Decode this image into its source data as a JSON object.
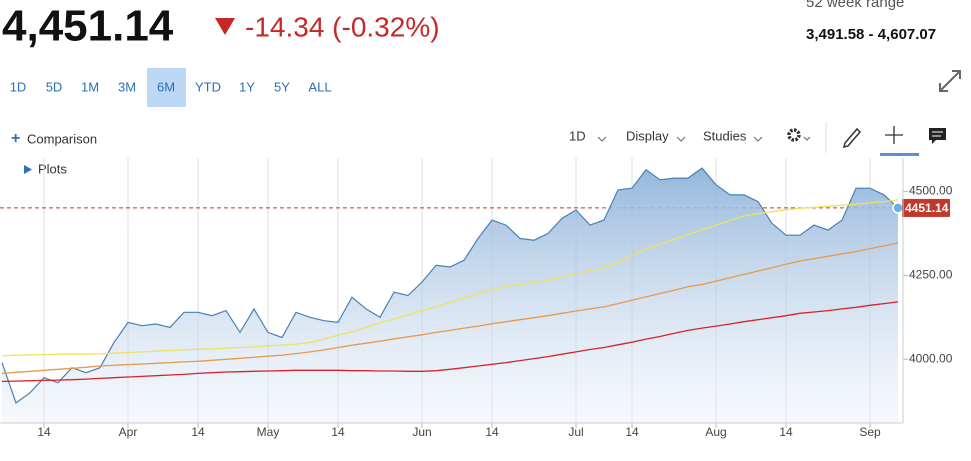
{
  "header": {
    "price": "4,451.14",
    "change": "-14.34 (-0.32%)",
    "range_label": "52 week range",
    "range": "3,491.58 - 4,607.07"
  },
  "toolbar": {
    "periods": [
      "1D",
      "5D",
      "1M",
      "3M",
      "6M",
      "YTD",
      "1Y",
      "5Y",
      "ALL"
    ],
    "active": "6M",
    "comparison": "Comparison",
    "interval": "1D",
    "display": "Display",
    "studies": "Studies",
    "plots": "Plots"
  },
  "chart_data": {
    "type": "line",
    "categories": [
      null,
      null,
      null,
      "14",
      null,
      null,
      null,
      null,
      null,
      "Apr",
      null,
      null,
      null,
      null,
      "14",
      null,
      null,
      null,
      null,
      "May",
      null,
      null,
      null,
      null,
      "14",
      null,
      null,
      null,
      null,
      null,
      "Jun",
      null,
      null,
      null,
      null,
      "14",
      null,
      null,
      null,
      null,
      null,
      "Jul",
      null,
      null,
      null,
      "14",
      null,
      null,
      null,
      null,
      null,
      "Aug",
      null,
      null,
      null,
      null,
      "14",
      null,
      null,
      null,
      null,
      null,
      "Sep",
      null,
      null
    ],
    "series": [
      {
        "color": "#4a7fb5",
        "fill": true,
        "values": [
          3990,
          3870,
          3900,
          3945,
          3930,
          3975,
          3960,
          3975,
          4050,
          4110,
          4100,
          4105,
          4095,
          4140,
          4140,
          4130,
          4145,
          4080,
          4150,
          4080,
          4065,
          4140,
          4125,
          4115,
          4110,
          4185,
          4150,
          4125,
          4200,
          4190,
          4230,
          4280,
          4275,
          4295,
          4360,
          4415,
          4400,
          4360,
          4355,
          4375,
          4420,
          4445,
          4400,
          4415,
          4505,
          4510,
          4565,
          4535,
          4540,
          4540,
          4570,
          4520,
          4490,
          4490,
          4470,
          4405,
          4370,
          4370,
          4400,
          4385,
          4415,
          4510,
          4510,
          4490,
          4451.14
        ]
      },
      {
        "color": "#ece35e",
        "values": [
          4010,
          4012,
          4013,
          4014,
          4015,
          4015,
          4015,
          4016,
          4018,
          4020,
          4022,
          4024,
          4026,
          4028,
          4030,
          4031,
          4033,
          4035,
          4037,
          4040,
          4042,
          4045,
          4050,
          4060,
          4072,
          4082,
          4095,
          4108,
          4120,
          4132,
          4145,
          4157,
          4170,
          4182,
          4195,
          4208,
          4217,
          4223,
          4229,
          4235,
          4245,
          4255,
          4265,
          4272,
          4290,
          4310,
          4328,
          4343,
          4357,
          4372,
          4386,
          4400,
          4414,
          4427,
          4434,
          4440,
          4446,
          4450,
          4453,
          4456,
          4459,
          4462,
          4466,
          4470,
          4475
        ]
      },
      {
        "color": "#e8994c",
        "values": [
          3958,
          3961,
          3964,
          3967,
          3970,
          3973,
          3976,
          3980,
          3982,
          3984,
          3986,
          3988,
          3990,
          3992,
          3994,
          3997,
          4000,
          4003,
          4006,
          4009,
          4012,
          4017,
          4022,
          4028,
          4035,
          4042,
          4048,
          4054,
          4061,
          4067,
          4073,
          4080,
          4086,
          4093,
          4099,
          4106,
          4112,
          4118,
          4124,
          4130,
          4137,
          4144,
          4150,
          4156,
          4166,
          4176,
          4186,
          4196,
          4206,
          4216,
          4223,
          4233,
          4243,
          4253,
          4263,
          4273,
          4283,
          4293,
          4300,
          4307,
          4314,
          4321,
          4330,
          4338,
          4347
        ]
      },
      {
        "color": "#d8232a",
        "values": [
          3934,
          3935,
          3936,
          3937,
          3938,
          3939,
          3941,
          3943,
          3945,
          3947,
          3949,
          3951,
          3953,
          3955,
          3958,
          3960,
          3962,
          3963,
          3964,
          3965,
          3966,
          3967,
          3967,
          3967,
          3967,
          3966,
          3966,
          3965,
          3965,
          3964,
          3964,
          3966,
          3970,
          3975,
          3980,
          3985,
          3990,
          3996,
          4002,
          4008,
          4015,
          4022,
          4029,
          4035,
          4043,
          4051,
          4060,
          4068,
          4077,
          4086,
          4093,
          4099,
          4105,
          4112,
          4118,
          4124,
          4130,
          4137,
          4141,
          4145,
          4150,
          4155,
          4161,
          4166,
          4171
        ]
      }
    ],
    "ylim": [
      3810,
      4600
    ],
    "yticks": [
      {
        "value": 4000,
        "label": "4000.00"
      },
      {
        "value": 4250,
        "label": "4250.00"
      },
      {
        "value": 4500,
        "label": "4500.00"
      }
    ],
    "reference_line": 4451.14,
    "reference_color": "#c0392b",
    "grid": "x"
  }
}
